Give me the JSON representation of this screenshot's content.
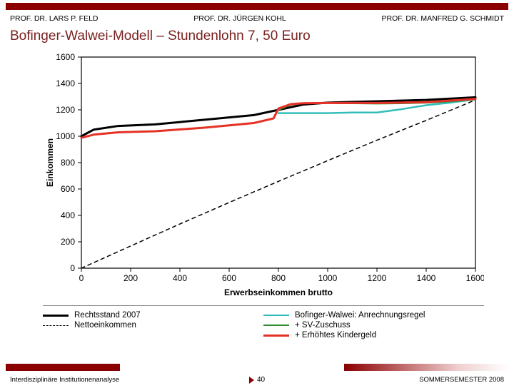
{
  "header": {
    "name_left": "PROF. DR. LARS P. FELD",
    "name_center": "PROF. DR. JÜRGEN KOHL",
    "name_right": "PROF. DR. MANFRED G. SCHMIDT"
  },
  "title": "Bofinger-Walwei-Modell – Stundenlohn 7, 50 Euro",
  "footer": {
    "left": "Interdisziplinäre Institutionenanalyse",
    "page": "40",
    "right": "SOMMERSEMESTER 2008"
  },
  "chart": {
    "type": "line",
    "background_color": "#ffffff",
    "plot_border_color": "#000000",
    "x_axis": {
      "label": "Erwerbseinkommen brutto",
      "label_fontsize": 12,
      "ticks": [
        0,
        200,
        400,
        600,
        800,
        1000,
        1200,
        1400,
        1600
      ],
      "lim": [
        0,
        1600
      ]
    },
    "y_axis": {
      "label": "Einkommen",
      "label_fontsize": 12,
      "ticks": [
        0,
        200,
        400,
        600,
        800,
        1000,
        1200,
        1400,
        1600
      ],
      "lim": [
        0,
        1600
      ]
    },
    "series": [
      {
        "name": "Rechtsstand 2007",
        "color": "#000000",
        "width": 3,
        "dash": "none",
        "points": [
          [
            0,
            1000
          ],
          [
            50,
            1050
          ],
          [
            150,
            1078
          ],
          [
            300,
            1090
          ],
          [
            500,
            1125
          ],
          [
            700,
            1160
          ],
          [
            800,
            1200
          ],
          [
            900,
            1240
          ],
          [
            1000,
            1255
          ],
          [
            1100,
            1260
          ],
          [
            1200,
            1265
          ],
          [
            1400,
            1275
          ],
          [
            1600,
            1295
          ]
        ]
      },
      {
        "name": "Nettoeinkommen",
        "color": "#000000",
        "width": 1.5,
        "dash": "5,5",
        "points": [
          [
            0,
            0
          ],
          [
            200,
            168
          ],
          [
            400,
            335
          ],
          [
            600,
            498
          ],
          [
            800,
            658
          ],
          [
            1000,
            815
          ],
          [
            1200,
            970
          ],
          [
            1400,
            1120
          ],
          [
            1600,
            1275
          ]
        ]
      },
      {
        "name": "Bofinger-Walwei: Anrechnungsregel",
        "color": "#33bdb9",
        "width": 2.5,
        "dash": "none",
        "points": [
          [
            800,
            1175
          ],
          [
            900,
            1175
          ],
          [
            1000,
            1175
          ],
          [
            1100,
            1180
          ],
          [
            1200,
            1180
          ],
          [
            1300,
            1205
          ],
          [
            1400,
            1235
          ],
          [
            1500,
            1255
          ],
          [
            1600,
            1280
          ]
        ]
      },
      {
        "name": "+ SV-Zuschuss",
        "color": "#2f8b2f",
        "width": 2.5,
        "dash": "none",
        "points": [
          [
            800,
            1200
          ],
          [
            850,
            1240
          ],
          [
            900,
            1250
          ],
          [
            1000,
            1252
          ],
          [
            1100,
            1250
          ],
          [
            1200,
            1248
          ],
          [
            1300,
            1250
          ],
          [
            1400,
            1255
          ],
          [
            1500,
            1265
          ],
          [
            1600,
            1280
          ]
        ]
      },
      {
        "name": "+ Erhöhtes Kindergeld",
        "color": "#e53025",
        "width": 3,
        "dash": "none",
        "points": [
          [
            0,
            988
          ],
          [
            50,
            1012
          ],
          [
            150,
            1030
          ],
          [
            300,
            1038
          ],
          [
            500,
            1065
          ],
          [
            700,
            1100
          ],
          [
            780,
            1135
          ],
          [
            800,
            1210
          ],
          [
            850,
            1243
          ],
          [
            900,
            1250
          ],
          [
            1000,
            1252
          ],
          [
            1200,
            1252
          ],
          [
            1400,
            1258
          ],
          [
            1600,
            1283
          ]
        ]
      }
    ],
    "legend": {
      "fontsize": 11.5,
      "items": [
        {
          "label": "Rechtsstand 2007",
          "color": "#000000",
          "dash": "none",
          "width": 3
        },
        {
          "label": "Bofinger-Walwei: Anrechnungsregel",
          "color": "#33bdb9",
          "dash": "none",
          "width": 2.5
        },
        {
          "label": "Nettoeinkommen",
          "color": "#000000",
          "dash": "dashed",
          "width": 1.5
        },
        {
          "label": "+ SV-Zuschuss",
          "color": "#2f8b2f",
          "dash": "none",
          "width": 2.5
        },
        {
          "label": "",
          "color": "transparent",
          "dash": "none",
          "width": 0
        },
        {
          "label": "+ Erhöhtes Kindergeld",
          "color": "#e53025",
          "dash": "none",
          "width": 3
        }
      ]
    }
  },
  "colors": {
    "accent": "#8b0000",
    "title": "#7a2020"
  }
}
